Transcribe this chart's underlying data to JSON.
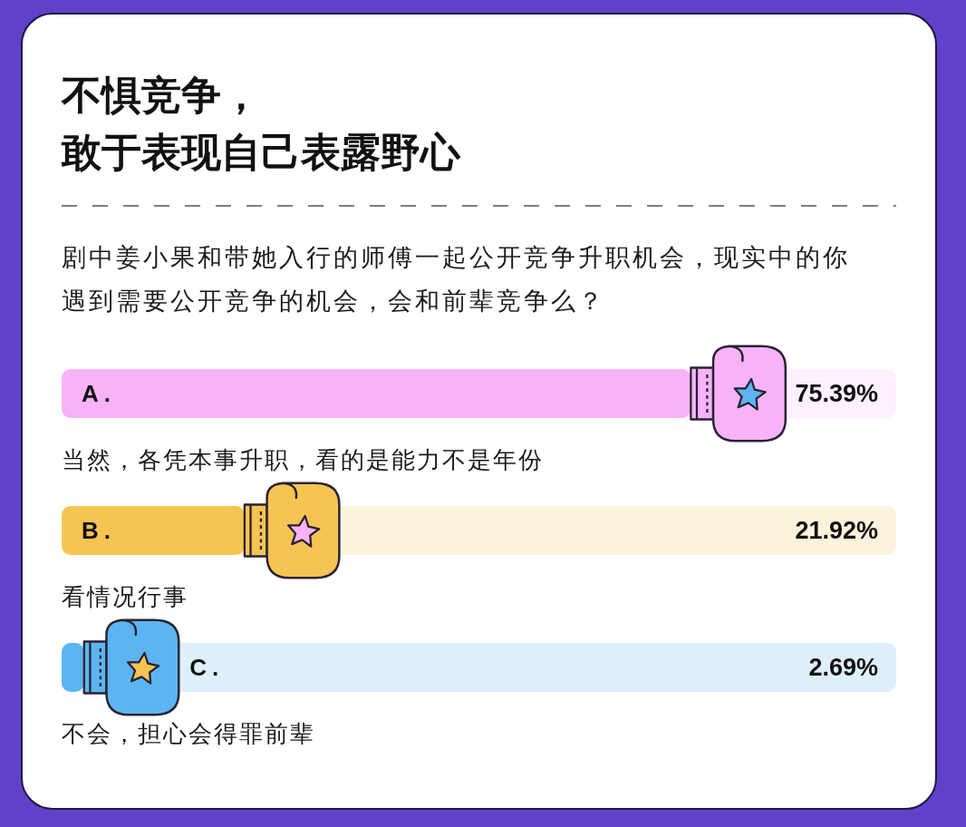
{
  "chart_data": {
    "type": "bar",
    "orientation": "horizontal",
    "title": "不惧竞争，敢于表现自己表露野心",
    "subtitle": "剧中姜小果和带她入行的师傅一起公开竞争升职机会，现实中的你遇到需要公开竞争的机会，会和前辈竞争么？",
    "categories": [
      "A.",
      "B.",
      "C."
    ],
    "values": [
      75.39,
      21.92,
      2.69
    ],
    "colors": [
      "#f8b3f8",
      "#f6c452",
      "#5cb5f0"
    ],
    "value_labels": [
      "75.39%",
      "21.92%",
      "2.69%"
    ],
    "xlim": [
      0,
      100
    ],
    "annotations": [
      "当然，各凭本事升职，看的是能力不是年份",
      "看情况行事",
      "不会，担心会得罪前辈"
    ]
  }
}
